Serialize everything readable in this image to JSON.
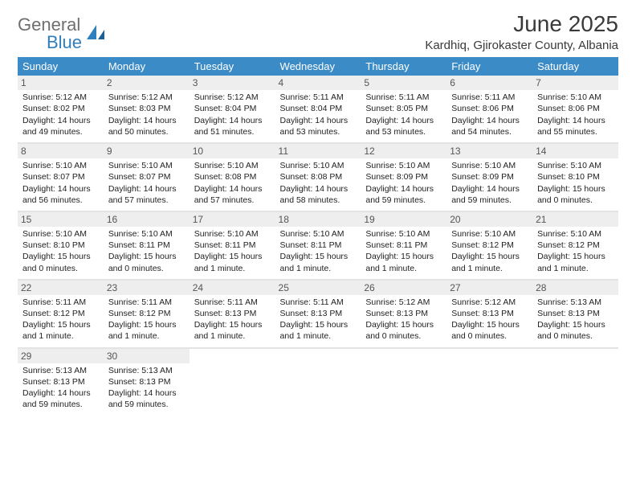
{
  "logo": {
    "word1": "General",
    "word2": "Blue",
    "word1_color": "#6f6f6f",
    "word2_color": "#2f7fbf"
  },
  "title": "June 2025",
  "location": "Kardhiq, Gjirokaster County, Albania",
  "colors": {
    "header_bg": "#3b8bc6",
    "header_text": "#ffffff",
    "row_divider": "#2f6fa0",
    "daynum_bg": "#eeeeee",
    "body_text": "#222222"
  },
  "weekdays": [
    "Sunday",
    "Monday",
    "Tuesday",
    "Wednesday",
    "Thursday",
    "Friday",
    "Saturday"
  ],
  "days": [
    {
      "n": "1",
      "sr": "Sunrise: 5:12 AM",
      "ss": "Sunset: 8:02 PM",
      "dl": "Daylight: 14 hours and 49 minutes."
    },
    {
      "n": "2",
      "sr": "Sunrise: 5:12 AM",
      "ss": "Sunset: 8:03 PM",
      "dl": "Daylight: 14 hours and 50 minutes."
    },
    {
      "n": "3",
      "sr": "Sunrise: 5:12 AM",
      "ss": "Sunset: 8:04 PM",
      "dl": "Daylight: 14 hours and 51 minutes."
    },
    {
      "n": "4",
      "sr": "Sunrise: 5:11 AM",
      "ss": "Sunset: 8:04 PM",
      "dl": "Daylight: 14 hours and 53 minutes."
    },
    {
      "n": "5",
      "sr": "Sunrise: 5:11 AM",
      "ss": "Sunset: 8:05 PM",
      "dl": "Daylight: 14 hours and 53 minutes."
    },
    {
      "n": "6",
      "sr": "Sunrise: 5:11 AM",
      "ss": "Sunset: 8:06 PM",
      "dl": "Daylight: 14 hours and 54 minutes."
    },
    {
      "n": "7",
      "sr": "Sunrise: 5:10 AM",
      "ss": "Sunset: 8:06 PM",
      "dl": "Daylight: 14 hours and 55 minutes."
    },
    {
      "n": "8",
      "sr": "Sunrise: 5:10 AM",
      "ss": "Sunset: 8:07 PM",
      "dl": "Daylight: 14 hours and 56 minutes."
    },
    {
      "n": "9",
      "sr": "Sunrise: 5:10 AM",
      "ss": "Sunset: 8:07 PM",
      "dl": "Daylight: 14 hours and 57 minutes."
    },
    {
      "n": "10",
      "sr": "Sunrise: 5:10 AM",
      "ss": "Sunset: 8:08 PM",
      "dl": "Daylight: 14 hours and 57 minutes."
    },
    {
      "n": "11",
      "sr": "Sunrise: 5:10 AM",
      "ss": "Sunset: 8:08 PM",
      "dl": "Daylight: 14 hours and 58 minutes."
    },
    {
      "n": "12",
      "sr": "Sunrise: 5:10 AM",
      "ss": "Sunset: 8:09 PM",
      "dl": "Daylight: 14 hours and 59 minutes."
    },
    {
      "n": "13",
      "sr": "Sunrise: 5:10 AM",
      "ss": "Sunset: 8:09 PM",
      "dl": "Daylight: 14 hours and 59 minutes."
    },
    {
      "n": "14",
      "sr": "Sunrise: 5:10 AM",
      "ss": "Sunset: 8:10 PM",
      "dl": "Daylight: 15 hours and 0 minutes."
    },
    {
      "n": "15",
      "sr": "Sunrise: 5:10 AM",
      "ss": "Sunset: 8:10 PM",
      "dl": "Daylight: 15 hours and 0 minutes."
    },
    {
      "n": "16",
      "sr": "Sunrise: 5:10 AM",
      "ss": "Sunset: 8:11 PM",
      "dl": "Daylight: 15 hours and 0 minutes."
    },
    {
      "n": "17",
      "sr": "Sunrise: 5:10 AM",
      "ss": "Sunset: 8:11 PM",
      "dl": "Daylight: 15 hours and 1 minute."
    },
    {
      "n": "18",
      "sr": "Sunrise: 5:10 AM",
      "ss": "Sunset: 8:11 PM",
      "dl": "Daylight: 15 hours and 1 minute."
    },
    {
      "n": "19",
      "sr": "Sunrise: 5:10 AM",
      "ss": "Sunset: 8:11 PM",
      "dl": "Daylight: 15 hours and 1 minute."
    },
    {
      "n": "20",
      "sr": "Sunrise: 5:10 AM",
      "ss": "Sunset: 8:12 PM",
      "dl": "Daylight: 15 hours and 1 minute."
    },
    {
      "n": "21",
      "sr": "Sunrise: 5:10 AM",
      "ss": "Sunset: 8:12 PM",
      "dl": "Daylight: 15 hours and 1 minute."
    },
    {
      "n": "22",
      "sr": "Sunrise: 5:11 AM",
      "ss": "Sunset: 8:12 PM",
      "dl": "Daylight: 15 hours and 1 minute."
    },
    {
      "n": "23",
      "sr": "Sunrise: 5:11 AM",
      "ss": "Sunset: 8:12 PM",
      "dl": "Daylight: 15 hours and 1 minute."
    },
    {
      "n": "24",
      "sr": "Sunrise: 5:11 AM",
      "ss": "Sunset: 8:13 PM",
      "dl": "Daylight: 15 hours and 1 minute."
    },
    {
      "n": "25",
      "sr": "Sunrise: 5:11 AM",
      "ss": "Sunset: 8:13 PM",
      "dl": "Daylight: 15 hours and 1 minute."
    },
    {
      "n": "26",
      "sr": "Sunrise: 5:12 AM",
      "ss": "Sunset: 8:13 PM",
      "dl": "Daylight: 15 hours and 0 minutes."
    },
    {
      "n": "27",
      "sr": "Sunrise: 5:12 AM",
      "ss": "Sunset: 8:13 PM",
      "dl": "Daylight: 15 hours and 0 minutes."
    },
    {
      "n": "28",
      "sr": "Sunrise: 5:13 AM",
      "ss": "Sunset: 8:13 PM",
      "dl": "Daylight: 15 hours and 0 minutes."
    },
    {
      "n": "29",
      "sr": "Sunrise: 5:13 AM",
      "ss": "Sunset: 8:13 PM",
      "dl": "Daylight: 14 hours and 59 minutes."
    },
    {
      "n": "30",
      "sr": "Sunrise: 5:13 AM",
      "ss": "Sunset: 8:13 PM",
      "dl": "Daylight: 14 hours and 59 minutes."
    }
  ]
}
